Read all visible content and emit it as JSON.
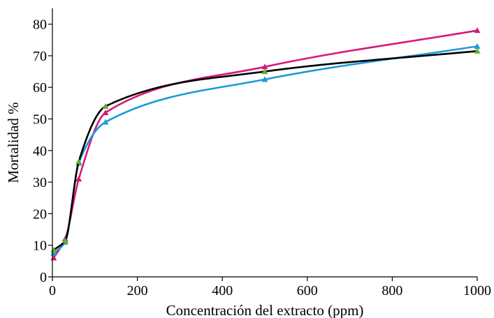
{
  "chart_data": {
    "type": "line",
    "title": "",
    "xlabel": "Concentración del extracto (ppm)",
    "ylabel": "Mortalidad %",
    "xlim": [
      0,
      1000
    ],
    "ylim": [
      0,
      85
    ],
    "xticks": [
      0,
      200,
      400,
      600,
      800,
      1000
    ],
    "yticks": [
      0,
      10,
      20,
      30,
      40,
      50,
      60,
      70,
      80
    ],
    "grid": false,
    "legend": "none",
    "series": [
      {
        "color": "#d6197a",
        "marker": "triangle",
        "x": [
          3,
          30,
          62,
          125,
          500,
          1000
        ],
        "y": [
          6,
          12,
          31,
          52,
          66.5,
          78
        ]
      },
      {
        "color": "#1e9bd7",
        "marker": "triangle",
        "x": [
          3,
          30,
          62,
          125,
          500,
          1000
        ],
        "y": [
          7.5,
          11,
          36,
          49,
          62.5,
          73
        ]
      },
      {
        "color": "#000000",
        "marker": "triangle",
        "marker_color": "#6aaa2a",
        "x": [
          3,
          30,
          62,
          125,
          500,
          1000
        ],
        "y": [
          8.5,
          11.5,
          36.5,
          54,
          65,
          71.5
        ]
      }
    ]
  }
}
